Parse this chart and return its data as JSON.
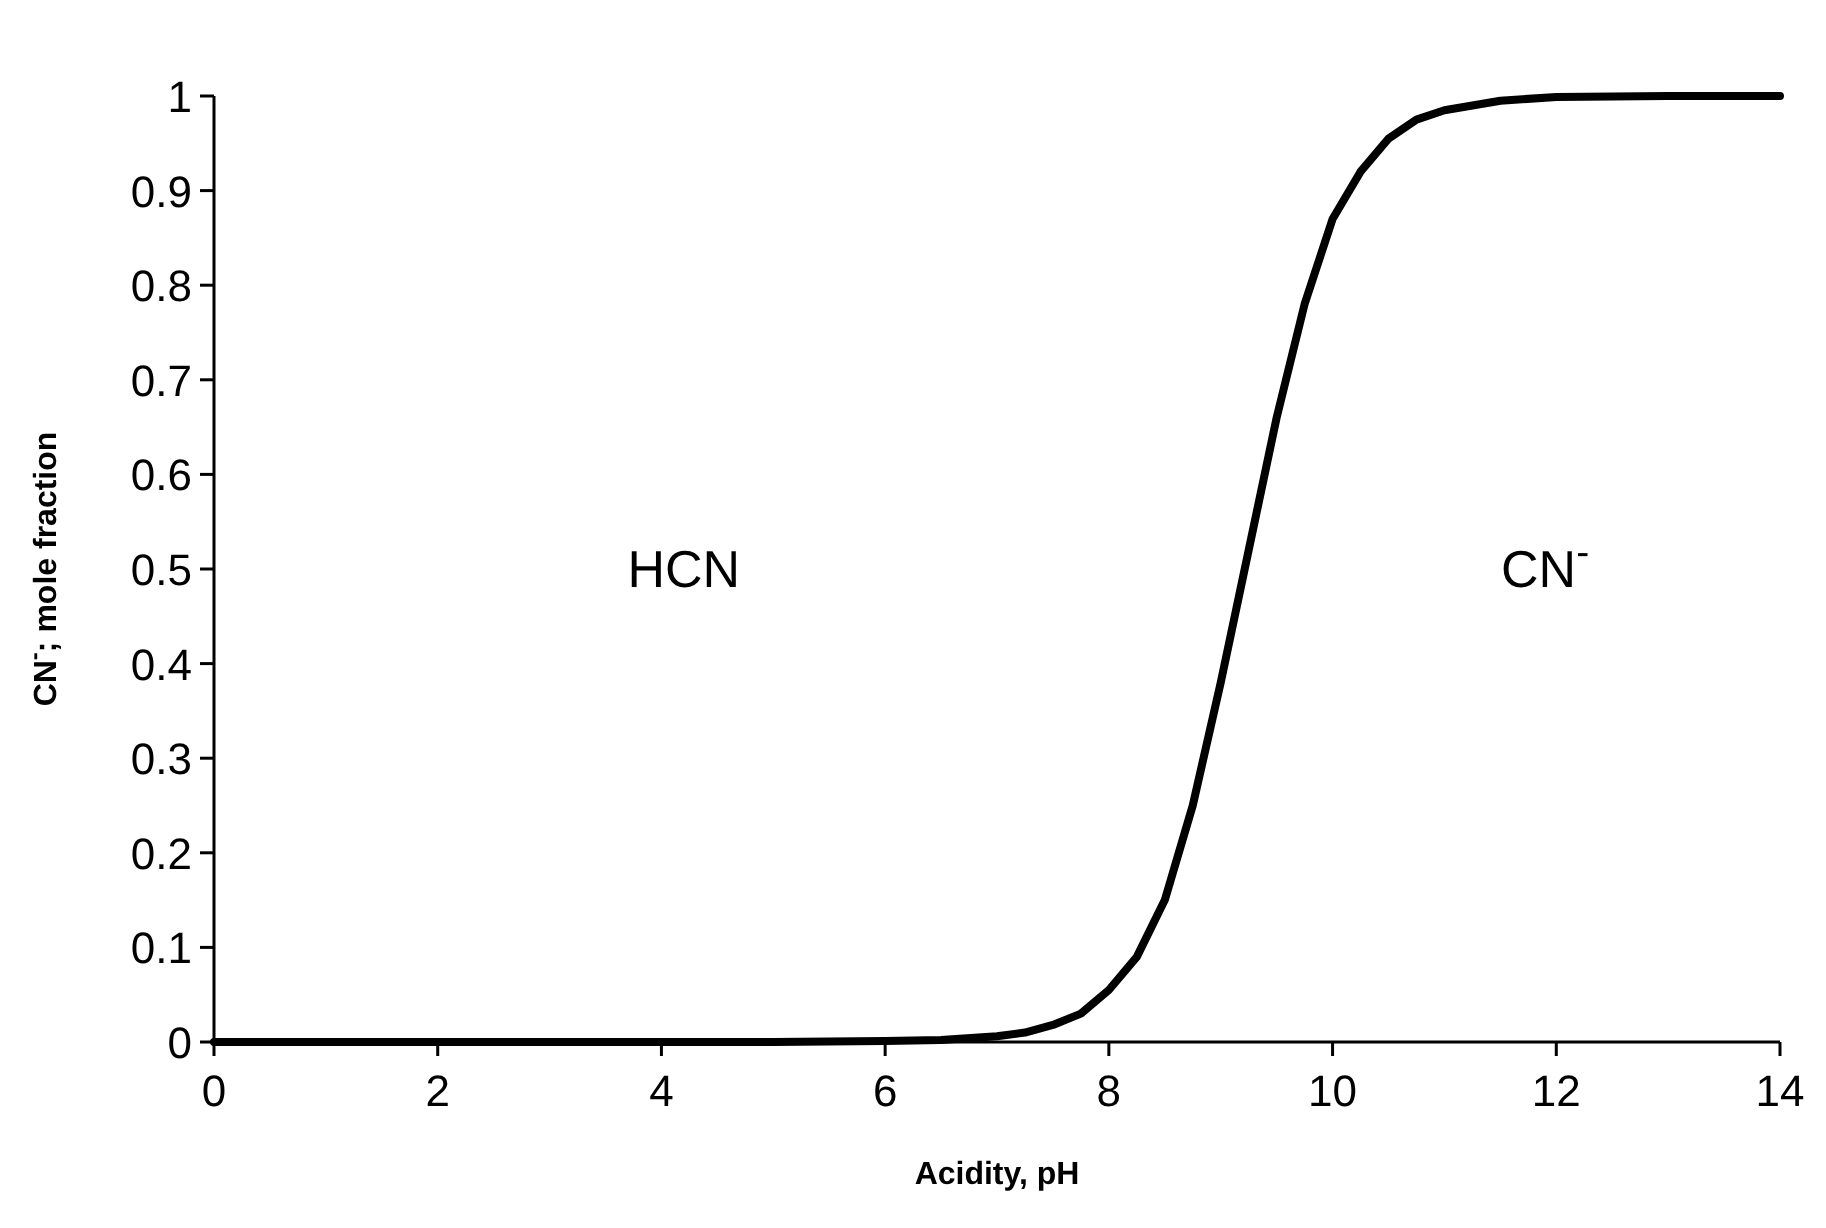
{
  "chart_data": {
    "type": "line",
    "xlabel": "Acidity, pH",
    "ylabel": "CN$^{-}$; mole fraction",
    "x": [
      0,
      1,
      2,
      3,
      4,
      5,
      6,
      6.5,
      7,
      7.25,
      7.5,
      7.75,
      8,
      8.25,
      8.5,
      8.75,
      9,
      9.25,
      9.5,
      9.75,
      10,
      10.25,
      10.5,
      10.75,
      11,
      11.5,
      12,
      13,
      14
    ],
    "series": [
      {
        "color": "#000000",
        "values": [
          0,
          0,
          0,
          0,
          0,
          0,
          0.001,
          0.002,
          0.006,
          0.01,
          0.018,
          0.03,
          0.055,
          0.09,
          0.15,
          0.25,
          0.38,
          0.52,
          0.66,
          0.78,
          0.87,
          0.92,
          0.955,
          0.975,
          0.985,
          0.995,
          0.999,
          1,
          1
        ]
      }
    ],
    "xlim": [
      0,
      14
    ],
    "xticks": [
      0,
      2,
      4,
      6,
      8,
      10,
      12,
      14
    ],
    "ylim": [
      0,
      1
    ],
    "yticks": [
      0,
      0.1,
      0.2,
      0.3,
      0.4,
      0.5,
      0.6,
      0.7,
      0.8,
      0.9,
      1
    ],
    "grid": false,
    "marker": "none",
    "line_style": "solid",
    "annotations": [
      "HCN",
      "CN$^{-}$"
    ]
  }
}
